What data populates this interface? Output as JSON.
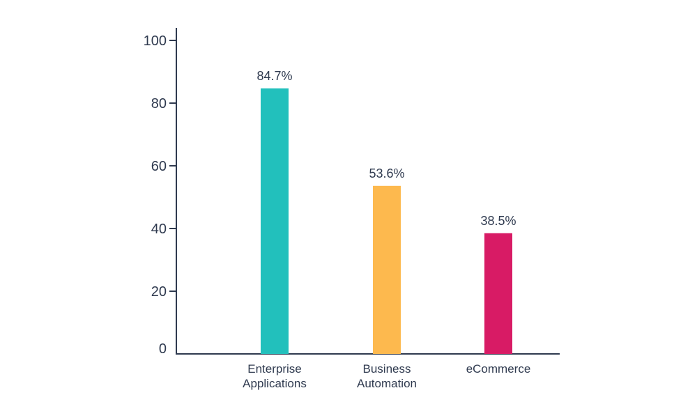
{
  "chart_data": {
    "type": "bar",
    "categories": [
      [
        "Enterprise",
        "Applications"
      ],
      [
        "Business",
        "Automation"
      ],
      [
        "eCommerce"
      ]
    ],
    "values": [
      84.7,
      53.6,
      38.5
    ],
    "data_labels": [
      "84.7%",
      "53.6%",
      "38.5%"
    ],
    "colors": [
      "#22c0bc",
      "#fdb94e",
      "#d81b65"
    ],
    "yticks": [
      0,
      20,
      40,
      60,
      80,
      100
    ],
    "ylim": [
      0,
      100
    ],
    "title": "",
    "xlabel": "",
    "ylabel": "",
    "grid": false,
    "legend": "none",
    "axis_color": "#2f3a4f"
  }
}
